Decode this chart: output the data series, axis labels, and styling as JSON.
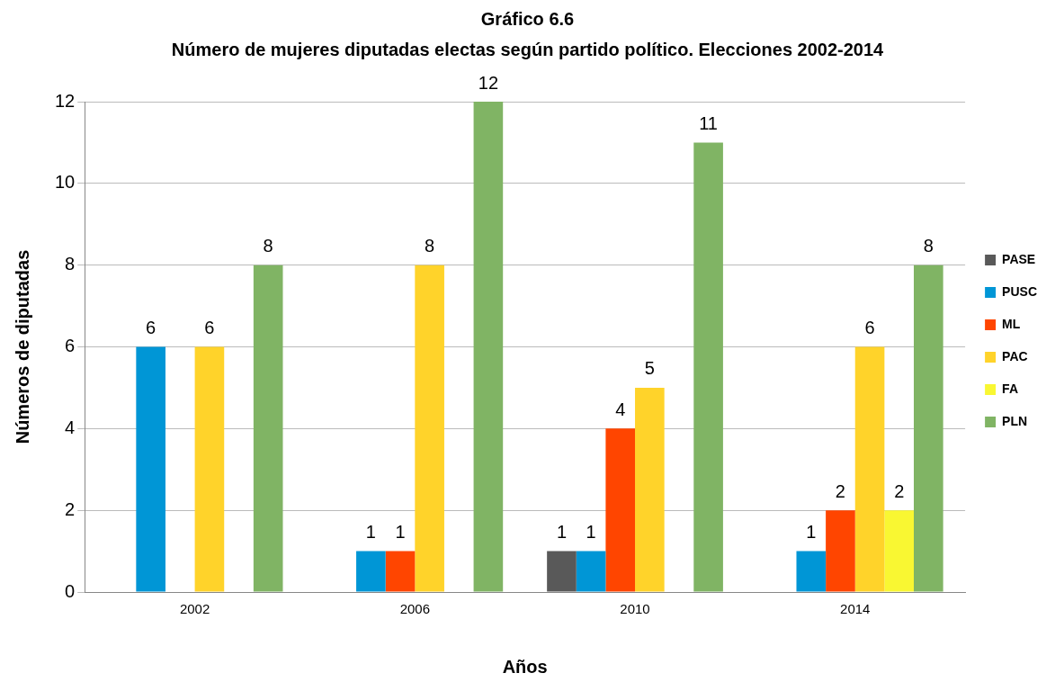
{
  "chart_data": {
    "type": "bar",
    "title": "Gráfico 6.6",
    "subtitle": "Número de mujeres diputadas electas según partido político. Elecciones 2002-2014",
    "xlabel": "Años",
    "ylabel": "Números de diputadas",
    "categories": [
      "2002",
      "2006",
      "2010",
      "2014"
    ],
    "series": [
      {
        "name": "PASE",
        "color": "#595959",
        "values": [
          null,
          null,
          1,
          null
        ]
      },
      {
        "name": "PUSC",
        "color": "#0096d6",
        "values": [
          6,
          1,
          1,
          1
        ]
      },
      {
        "name": "ML",
        "color": "#ff4500",
        "values": [
          null,
          1,
          4,
          2
        ]
      },
      {
        "name": "PAC",
        "color": "#ffd32a",
        "values": [
          6,
          8,
          5,
          6
        ]
      },
      {
        "name": "FA",
        "color": "#f9f732",
        "values": [
          null,
          null,
          null,
          2
        ]
      },
      {
        "name": "PLN",
        "color": "#80b464",
        "values": [
          8,
          12,
          11,
          8
        ]
      }
    ],
    "ylim": [
      0,
      12
    ],
    "yticks": [
      0,
      2,
      4,
      6,
      8,
      10,
      12
    ],
    "grid": "y",
    "legend": "right",
    "data_labels": true
  }
}
